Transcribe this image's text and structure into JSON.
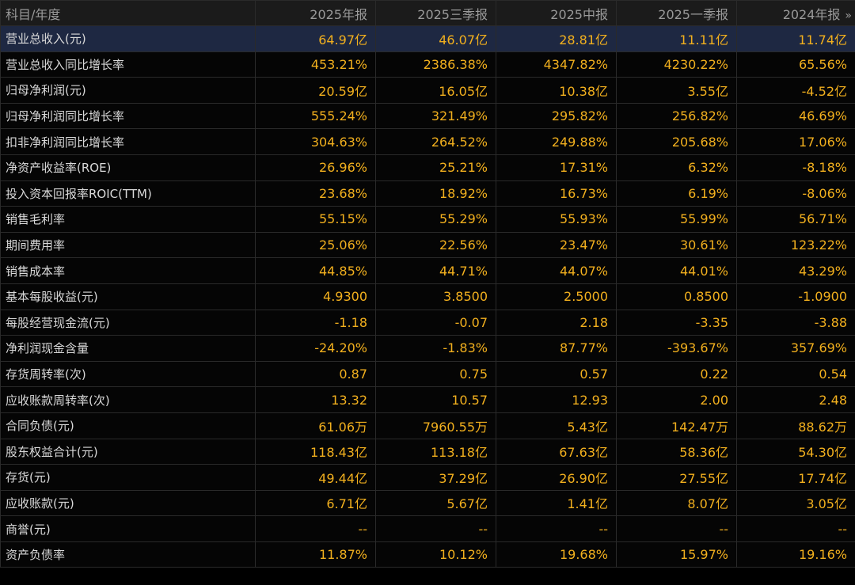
{
  "header": {
    "label": "科目/年度",
    "periods": [
      "2025年报",
      "2025三季报",
      "2025中报",
      "2025一季报",
      "2024年报"
    ],
    "more_icon": "»"
  },
  "rows": [
    {
      "label": "营业总收入(元)",
      "values": [
        "64.97亿",
        "46.07亿",
        "28.81亿",
        "11.11亿",
        "11.74亿"
      ]
    },
    {
      "label": "营业总收入同比增长率",
      "values": [
        "453.21%",
        "2386.38%",
        "4347.82%",
        "4230.22%",
        "65.56%"
      ]
    },
    {
      "label": "归母净利润(元)",
      "values": [
        "20.59亿",
        "16.05亿",
        "10.38亿",
        "3.55亿",
        "-4.52亿"
      ]
    },
    {
      "label": "归母净利润同比增长率",
      "values": [
        "555.24%",
        "321.49%",
        "295.82%",
        "256.82%",
        "46.69%"
      ]
    },
    {
      "label": "扣非净利润同比增长率",
      "values": [
        "304.63%",
        "264.52%",
        "249.88%",
        "205.68%",
        "17.06%"
      ]
    },
    {
      "label": "净资产收益率(ROE)",
      "values": [
        "26.96%",
        "25.21%",
        "17.31%",
        "6.32%",
        "-8.18%"
      ]
    },
    {
      "label": "投入资本回报率ROIC(TTM)",
      "values": [
        "23.68%",
        "18.92%",
        "16.73%",
        "6.19%",
        "-8.06%"
      ]
    },
    {
      "label": "销售毛利率",
      "values": [
        "55.15%",
        "55.29%",
        "55.93%",
        "55.99%",
        "56.71%"
      ]
    },
    {
      "label": "期间费用率",
      "values": [
        "25.06%",
        "22.56%",
        "23.47%",
        "30.61%",
        "123.22%"
      ]
    },
    {
      "label": "销售成本率",
      "values": [
        "44.85%",
        "44.71%",
        "44.07%",
        "44.01%",
        "43.29%"
      ]
    },
    {
      "label": "基本每股收益(元)",
      "values": [
        "4.9300",
        "3.8500",
        "2.5000",
        "0.8500",
        "-1.0900"
      ]
    },
    {
      "label": "每股经营现金流(元)",
      "values": [
        "-1.18",
        "-0.07",
        "2.18",
        "-3.35",
        "-3.88"
      ]
    },
    {
      "label": "净利润现金含量",
      "values": [
        "-24.20%",
        "-1.83%",
        "87.77%",
        "-393.67%",
        "357.69%"
      ]
    },
    {
      "label": "存货周转率(次)",
      "values": [
        "0.87",
        "0.75",
        "0.57",
        "0.22",
        "0.54"
      ]
    },
    {
      "label": "应收账款周转率(次)",
      "values": [
        "13.32",
        "10.57",
        "12.93",
        "2.00",
        "2.48"
      ]
    },
    {
      "label": "合同负债(元)",
      "values": [
        "61.06万",
        "7960.55万",
        "5.43亿",
        "142.47万",
        "88.62万"
      ]
    },
    {
      "label": "股东权益合计(元)",
      "values": [
        "118.43亿",
        "113.18亿",
        "67.63亿",
        "58.36亿",
        "54.30亿"
      ]
    },
    {
      "label": "存货(元)",
      "values": [
        "49.44亿",
        "37.29亿",
        "26.90亿",
        "27.55亿",
        "17.74亿"
      ]
    },
    {
      "label": "应收账款(元)",
      "values": [
        "6.71亿",
        "5.67亿",
        "1.41亿",
        "8.07亿",
        "3.05亿"
      ]
    },
    {
      "label": "商誉(元)",
      "values": [
        "--",
        "--",
        "--",
        "--",
        "--"
      ]
    },
    {
      "label": "资产负债率",
      "values": [
        "11.87%",
        "10.12%",
        "19.68%",
        "15.97%",
        "19.16%"
      ]
    }
  ]
}
